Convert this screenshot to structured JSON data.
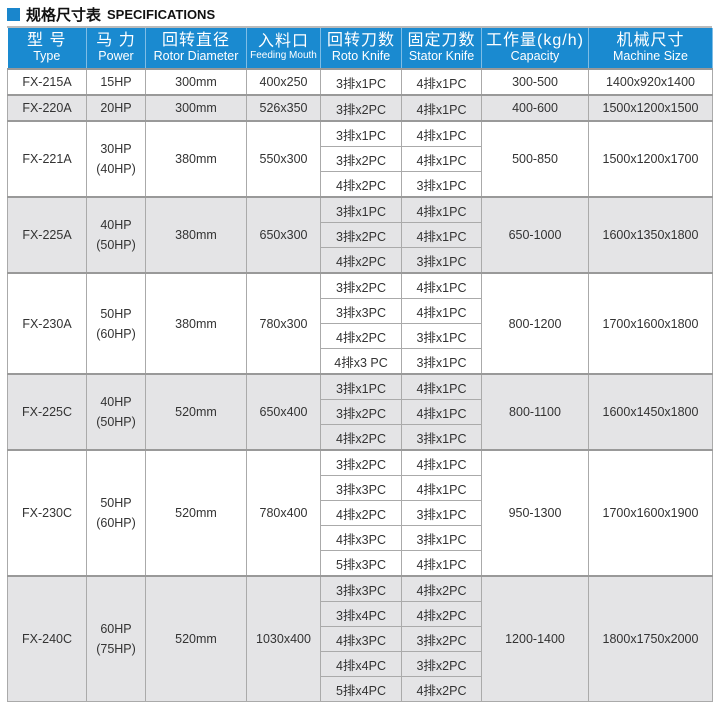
{
  "title": {
    "zh": "规格尺寸表",
    "en": "SPECIFICATIONS"
  },
  "colors": {
    "header": "#1a8ad0",
    "accent": "#1a86cc",
    "grey_row": "#e4e4e6"
  },
  "headers": [
    {
      "zh": "型 号",
      "en": "Type"
    },
    {
      "zh": "马 力",
      "en": "Power"
    },
    {
      "zh": "回转直径",
      "en": "Rotor Diameter"
    },
    {
      "zh": "入料口",
      "en": "Feeding Mouth"
    },
    {
      "zh": "回转刀数",
      "en": "Roto Knife"
    },
    {
      "zh": "固定刀数",
      "en": "Stator Knife"
    },
    {
      "zh": "工作量(kg/h)",
      "en": "Capacity"
    },
    {
      "zh": "机械尺寸",
      "en": "Machine Size"
    }
  ],
  "models": [
    {
      "type": "FX-215A",
      "power": "15HP",
      "power_alt": "",
      "rotor": "300mm",
      "feed": "400x250",
      "knives": [
        [
          "3排x1PC",
          "4排x1PC"
        ]
      ],
      "capacity": "300-500",
      "size": "1400x920x1400"
    },
    {
      "type": "FX-220A",
      "power": "20HP",
      "power_alt": "",
      "rotor": "300mm",
      "feed": "526x350",
      "knives": [
        [
          "3排x2PC",
          "4排x1PC"
        ]
      ],
      "capacity": "400-600",
      "size": "1500x1200x1500"
    },
    {
      "type": "FX-221A",
      "power": "30HP",
      "power_alt": "(40HP)",
      "rotor": "380mm",
      "feed": "550x300",
      "knives": [
        [
          "3排x1PC",
          "4排x1PC"
        ],
        [
          "3排x2PC",
          "4排x1PC"
        ],
        [
          "4排x2PC",
          "3排x1PC"
        ]
      ],
      "capacity": "500-850",
      "size": "1500x1200x1700"
    },
    {
      "type": "FX-225A",
      "power": "40HP",
      "power_alt": "(50HP)",
      "rotor": "380mm",
      "feed": "650x300",
      "knives": [
        [
          "3排x1PC",
          "4排x1PC"
        ],
        [
          "3排x2PC",
          "4排x1PC"
        ],
        [
          "4排x2PC",
          "3排x1PC"
        ]
      ],
      "capacity": "650-1000",
      "size": "1600x1350x1800"
    },
    {
      "type": "FX-230A",
      "power": "50HP",
      "power_alt": "(60HP)",
      "rotor": "380mm",
      "feed": "780x300",
      "knives": [
        [
          "3排x2PC",
          "4排x1PC"
        ],
        [
          "3排x3PC",
          "4排x1PC"
        ],
        [
          "4排x2PC",
          "3排x1PC"
        ],
        [
          "4排x3 PC",
          "3排x1PC"
        ]
      ],
      "capacity": "800-1200",
      "size": "1700x1600x1800"
    },
    {
      "type": "FX-225C",
      "power": "40HP",
      "power_alt": "(50HP)",
      "rotor": "520mm",
      "feed": "650x400",
      "knives": [
        [
          "3排x1PC",
          "4排x1PC"
        ],
        [
          "3排x2PC",
          "4排x1PC"
        ],
        [
          "4排x2PC",
          "3排x1PC"
        ]
      ],
      "capacity": "800-1100",
      "size": "1600x1450x1800"
    },
    {
      "type": "FX-230C",
      "power": "50HP",
      "power_alt": "(60HP)",
      "rotor": "520mm",
      "feed": "780x400",
      "knives": [
        [
          "3排x2PC",
          "4排x1PC"
        ],
        [
          "3排x3PC",
          "4排x1PC"
        ],
        [
          "4排x2PC",
          "3排x1PC"
        ],
        [
          "4排x3PC",
          "3排x1PC"
        ],
        [
          "5排x3PC",
          "4排x1PC"
        ]
      ],
      "capacity": "950-1300",
      "size": "1700x1600x1900"
    },
    {
      "type": "FX-240C",
      "power": "60HP",
      "power_alt": "(75HP)",
      "rotor": "520mm",
      "feed": "1030x400",
      "knives": [
        [
          "3排x3PC",
          "4排x2PC"
        ],
        [
          "3排x4PC",
          "4排x2PC"
        ],
        [
          "4排x3PC",
          "3排x2PC"
        ],
        [
          "4排x4PC",
          "3排x2PC"
        ],
        [
          "5排x4PC",
          "4排x2PC"
        ]
      ],
      "capacity": "1200-1400",
      "size": "1800x1750x2000"
    }
  ]
}
